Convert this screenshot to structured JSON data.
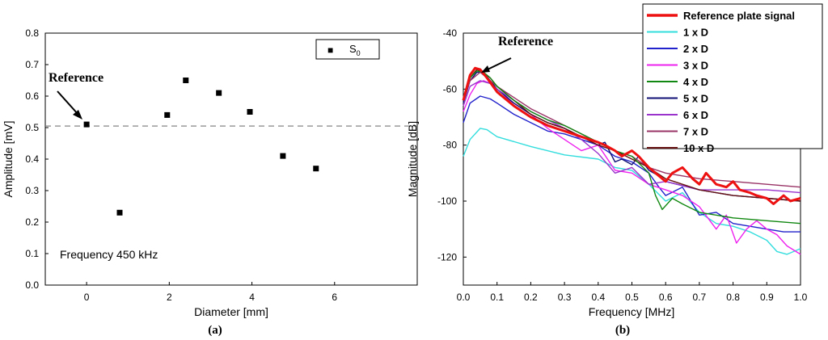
{
  "figure_labels": {
    "a": "(a)",
    "b": "(b)"
  },
  "chart_data": [
    {
      "type": "scatter",
      "xlabel": "Diameter [mm]",
      "ylabel": "Amplitude [mV]",
      "xlim": [
        -1,
        8
      ],
      "ylim": [
        0,
        0.8
      ],
      "xticks": [
        "0",
        "2",
        "4",
        "6"
      ],
      "yticks": [
        "0.0",
        "0.1",
        "0.2",
        "0.3",
        "0.4",
        "0.5",
        "0.6",
        "0.7",
        "0.8"
      ],
      "legend": {
        "symbol": "■",
        "label": "S",
        "label_sub": "0"
      },
      "reference_line": 0.505,
      "annotation_reference": "Reference",
      "annotation_frequency": "Frequency 450 kHz",
      "series": [
        {
          "name": "S0",
          "x": [
            0,
            0.8,
            1.95,
            2.4,
            3.2,
            3.95,
            4.75,
            5.55
          ],
          "y": [
            0.51,
            0.23,
            0.54,
            0.65,
            0.61,
            0.55,
            0.41,
            0.37
          ]
        }
      ]
    },
    {
      "type": "line",
      "xlabel": "Frequency [MHz]",
      "ylabel": "Magnitude [dB]",
      "xlim": [
        0,
        1.0
      ],
      "ylim": [
        -130,
        -40
      ],
      "xticks": [
        "0.0",
        "0.1",
        "0.2",
        "0.3",
        "0.4",
        "0.5",
        "0.6",
        "0.7",
        "0.8",
        "0.9",
        "1.0"
      ],
      "yticks": [
        "-40",
        "-60",
        "-80",
        "-100",
        "-120"
      ],
      "annotation_reference": "Reference",
      "series": [
        {
          "name": "Reference plate signal",
          "color": "#ee1111",
          "thick": true,
          "x": [
            0,
            0.02,
            0.035,
            0.05,
            0.07,
            0.1,
            0.15,
            0.2,
            0.25,
            0.3,
            0.35,
            0.4,
            0.42,
            0.45,
            0.47,
            0.5,
            0.52,
            0.55,
            0.58,
            0.6,
            0.62,
            0.65,
            0.68,
            0.7,
            0.72,
            0.75,
            0.78,
            0.8,
            0.82,
            0.85,
            0.87,
            0.9,
            0.92,
            0.95,
            0.97,
            1.0
          ],
          "y": [
            -64,
            -55,
            -52.5,
            -53,
            -56,
            -61,
            -66,
            -70,
            -73,
            -75,
            -77,
            -79,
            -80,
            -82,
            -84,
            -82,
            -84,
            -88,
            -91,
            -93,
            -90,
            -88,
            -92,
            -94,
            -90,
            -94,
            -95,
            -93,
            -96,
            -97,
            -98,
            -99,
            -101,
            -98,
            -100,
            -99
          ]
        },
        {
          "name": "1 x D",
          "color": "#33dddd",
          "x": [
            0,
            0.02,
            0.05,
            0.07,
            0.1,
            0.2,
            0.3,
            0.4,
            0.45,
            0.5,
            0.55,
            0.6,
            0.65,
            0.7,
            0.75,
            0.8,
            0.85,
            0.9,
            0.93,
            0.96,
            1.0
          ],
          "y": [
            -84,
            -78,
            -74,
            -74.5,
            -77,
            -80.5,
            -83.5,
            -85,
            -88,
            -89,
            -94,
            -100,
            -97,
            -104,
            -108,
            -109,
            -111,
            -114,
            -118,
            -119,
            -117
          ]
        },
        {
          "name": "2 x D",
          "color": "#2222cc",
          "x": [
            0,
            0.02,
            0.05,
            0.08,
            0.1,
            0.15,
            0.2,
            0.25,
            0.3,
            0.35,
            0.4,
            0.45,
            0.5,
            0.55,
            0.58,
            0.6,
            0.65,
            0.7,
            0.75,
            0.8,
            0.85,
            0.9,
            0.95,
            1.0
          ],
          "y": [
            -72,
            -65,
            -62.5,
            -63.5,
            -65,
            -69,
            -72,
            -75,
            -76,
            -78,
            -80,
            -84,
            -86,
            -90,
            -95,
            -98,
            -95,
            -105,
            -104,
            -108,
            -109,
            -110,
            -111,
            -111
          ]
        },
        {
          "name": "3 x D",
          "color": "#ee22ee",
          "x": [
            0,
            0.02,
            0.04,
            0.06,
            0.08,
            0.1,
            0.15,
            0.2,
            0.25,
            0.3,
            0.35,
            0.4,
            0.45,
            0.5,
            0.55,
            0.6,
            0.65,
            0.7,
            0.75,
            0.78,
            0.81,
            0.84,
            0.87,
            0.9,
            0.93,
            0.96,
            1.0
          ],
          "y": [
            -68,
            -62,
            -58,
            -57,
            -58,
            -61,
            -65,
            -69,
            -74,
            -78,
            -82,
            -80,
            -89,
            -90,
            -94,
            -96,
            -98,
            -102,
            -110,
            -105,
            -115,
            -110,
            -107,
            -110,
            -112,
            -116,
            -119
          ]
        },
        {
          "name": "4 x D",
          "color": "#118811",
          "x": [
            0,
            0.02,
            0.04,
            0.06,
            0.08,
            0.1,
            0.15,
            0.2,
            0.25,
            0.3,
            0.35,
            0.4,
            0.45,
            0.5,
            0.55,
            0.57,
            0.59,
            0.62,
            0.65,
            0.7,
            0.8,
            0.9,
            1.0
          ],
          "y": [
            -63,
            -56,
            -53.5,
            -54,
            -56,
            -59,
            -64,
            -68,
            -71,
            -73,
            -76,
            -79,
            -82,
            -84,
            -90,
            -98,
            -103,
            -99,
            -101,
            -104,
            -106,
            -107,
            -108
          ]
        },
        {
          "name": "5 x D",
          "color": "#111177",
          "x": [
            0,
            0.02,
            0.04,
            0.06,
            0.08,
            0.1,
            0.15,
            0.2,
            0.25,
            0.3,
            0.35,
            0.4,
            0.42,
            0.45,
            0.47,
            0.5,
            0.52,
            0.55,
            0.58,
            0.6,
            0.7,
            0.8,
            0.9,
            1.0
          ],
          "y": [
            -65,
            -57,
            -54,
            -54,
            -57,
            -60,
            -65,
            -69,
            -72,
            -74,
            -77,
            -80,
            -79,
            -86,
            -85,
            -87,
            -84,
            -89,
            -91,
            -93,
            -96,
            -98,
            -99,
            -100
          ]
        },
        {
          "name": "6 x D",
          "color": "#9933cc",
          "x": [
            0,
            0.02,
            0.05,
            0.08,
            0.1,
            0.15,
            0.2,
            0.25,
            0.3,
            0.35,
            0.4,
            0.45,
            0.5,
            0.55,
            0.6,
            0.7,
            0.8,
            0.9,
            1.0
          ],
          "y": [
            -66,
            -59,
            -57,
            -58,
            -60,
            -64,
            -68,
            -71,
            -74,
            -78,
            -83,
            -90,
            -88,
            -94,
            -93,
            -96,
            -96,
            -96,
            -97
          ]
        },
        {
          "name": "7 x D",
          "color": "#993366",
          "x": [
            0,
            0.02,
            0.05,
            0.08,
            0.1,
            0.15,
            0.2,
            0.25,
            0.3,
            0.35,
            0.4,
            0.45,
            0.5,
            0.55,
            0.6,
            0.7,
            0.8,
            0.9,
            1.0
          ],
          "y": [
            -64,
            -57,
            -54,
            -57,
            -59,
            -63,
            -67,
            -70,
            -73,
            -76,
            -79,
            -82,
            -84,
            -88,
            -90,
            -92,
            -93,
            -94,
            -95
          ]
        },
        {
          "name": "10 x D",
          "color": "#661111",
          "x": [
            0,
            0.02,
            0.04,
            0.06,
            0.08,
            0.1,
            0.15,
            0.2,
            0.25,
            0.3,
            0.35,
            0.4,
            0.45,
            0.5,
            0.55,
            0.6,
            0.65,
            0.7,
            0.8,
            0.9,
            1.0
          ],
          "y": [
            -63,
            -56,
            -53,
            -54,
            -56,
            -59,
            -64,
            -69,
            -72,
            -74,
            -77,
            -80,
            -82,
            -85,
            -88,
            -92,
            -94,
            -96,
            -98,
            -99,
            -100
          ]
        }
      ]
    }
  ]
}
